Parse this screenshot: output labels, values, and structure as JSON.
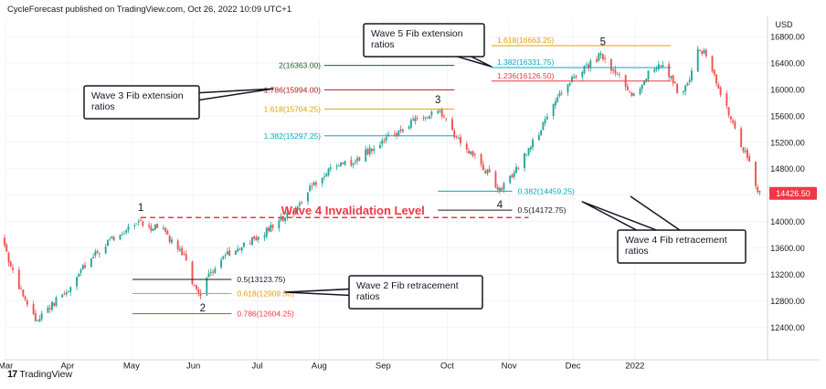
{
  "header": {
    "publisher_line": "CycleForecast published on TradingView.com, Oct 26, 2022 10:09 UTC+1"
  },
  "footer": {
    "logo": "17",
    "brand": "TradingView"
  },
  "chart_data": {
    "type": "candlestick",
    "currency_label": "USD",
    "x_tick_labels": [
      "Mar",
      "Apr",
      "May",
      "Jun",
      "Jul",
      "Aug",
      "Sep",
      "Oct",
      "Nov",
      "Dec",
      "2022"
    ],
    "y_tick_labels": [
      12400,
      12800,
      13200,
      13600,
      14000,
      14400,
      14800,
      15200,
      15600,
      16000,
      16400,
      16800
    ],
    "ylim": [
      12100,
      17050
    ],
    "last_price": {
      "label": "14426.50",
      "value": 14426.5
    },
    "price_path": [
      [
        0,
        13750
      ],
      [
        4,
        13300
      ],
      [
        10,
        12850
      ],
      [
        16,
        12500
      ],
      [
        24,
        12750
      ],
      [
        32,
        12950
      ],
      [
        40,
        13350
      ],
      [
        50,
        13650
      ],
      [
        58,
        13850
      ],
      [
        66,
        14000
      ],
      [
        70,
        13900
      ],
      [
        76,
        13950
      ],
      [
        82,
        13700
      ],
      [
        88,
        13500
      ],
      [
        92,
        13050
      ],
      [
        96,
        12920
      ],
      [
        100,
        13200
      ],
      [
        106,
        13450
      ],
      [
        112,
        13550
      ],
      [
        118,
        13650
      ],
      [
        126,
        13800
      ],
      [
        134,
        14000
      ],
      [
        142,
        14200
      ],
      [
        150,
        14550
      ],
      [
        156,
        14700
      ],
      [
        164,
        14900
      ],
      [
        170,
        14850
      ],
      [
        176,
        15050
      ],
      [
        182,
        15150
      ],
      [
        188,
        15300
      ],
      [
        194,
        15400
      ],
      [
        200,
        15550
      ],
      [
        206,
        15600
      ],
      [
        212,
        15650
      ],
      [
        218,
        15350
      ],
      [
        224,
        15150
      ],
      [
        230,
        14950
      ],
      [
        236,
        14700
      ],
      [
        240,
        14480
      ],
      [
        244,
        14550
      ],
      [
        250,
        14850
      ],
      [
        256,
        15150
      ],
      [
        262,
        15450
      ],
      [
        268,
        15800
      ],
      [
        274,
        16100
      ],
      [
        280,
        16300
      ],
      [
        286,
        16400
      ],
      [
        290,
        16520
      ],
      [
        294,
        16300
      ],
      [
        300,
        16150
      ],
      [
        306,
        15900
      ],
      [
        312,
        16200
      ],
      [
        318,
        16400
      ],
      [
        324,
        16200
      ],
      [
        328,
        15900
      ],
      [
        332,
        16050
      ],
      [
        336,
        16550
      ],
      [
        340,
        16600
      ],
      [
        344,
        16300
      ],
      [
        348,
        15950
      ],
      [
        352,
        15650
      ],
      [
        356,
        15300
      ],
      [
        362,
        14900
      ],
      [
        366,
        14430
      ]
    ],
    "waves": [
      {
        "label": "1",
        "day": 66,
        "price": 14050,
        "position": "above"
      },
      {
        "label": "2",
        "day": 96,
        "price": 12860,
        "position": "below"
      },
      {
        "label": "3",
        "day": 210,
        "price": 15680,
        "position": "above"
      },
      {
        "label": "4",
        "day": 240,
        "price": 14420,
        "position": "below"
      },
      {
        "label": "5",
        "day": 290,
        "price": 16560,
        "position": "above"
      }
    ],
    "invalidation": {
      "label": "Wave 4 Invalidation Level",
      "price": 14060,
      "color": "#f23645",
      "day_start": 66,
      "day_end": 254
    },
    "fib_levels": [
      {
        "label": "2(16363.00)",
        "price": 16363.0,
        "color": "#1b5e20",
        "day_start": 155,
        "day_end": 218,
        "label_side": "left"
      },
      {
        "label": "1.786(15994.00)",
        "price": 15994.0,
        "color": "#b71c1c",
        "day_start": 155,
        "day_end": 218,
        "label_side": "left"
      },
      {
        "label": "1.618(15704.25)",
        "price": 15704.25,
        "color": "#e6a100",
        "day_start": 155,
        "day_end": 218,
        "label_side": "left"
      },
      {
        "label": "1.382(15297.25)",
        "price": 15297.25,
        "color": "#00acc1",
        "day_start": 155,
        "day_end": 218,
        "label_side": "left"
      },
      {
        "label": "1.618(16663.25)",
        "price": 16663.25,
        "color": "#e6a100",
        "day_start": 236,
        "day_end": 323,
        "label_side": "inside"
      },
      {
        "label": "1.382(16331.75)",
        "price": 16331.75,
        "color": "#00acc1",
        "day_start": 236,
        "day_end": 323,
        "label_side": "inside"
      },
      {
        "label": "1.236(16126.50)",
        "price": 16126.5,
        "color": "#f23645",
        "day_start": 236,
        "day_end": 323,
        "label_side": "inside"
      },
      {
        "label": "0.382(14459.25)",
        "price": 14459.25,
        "color": "#00acc1",
        "day_start": 210,
        "day_end": 246,
        "label_side": "right"
      },
      {
        "label": "0.5(14172.75)",
        "price": 14172.75,
        "color": "#131722",
        "day_start": 210,
        "day_end": 246,
        "label_side": "right"
      },
      {
        "label": "0.5(13123.75)",
        "price": 13123.75,
        "color": "#131722",
        "day_start": 62,
        "day_end": 110,
        "label_side": "right"
      },
      {
        "label": "0.618(12909.50)",
        "price": 12909.5,
        "color": "#e6a100",
        "day_start": 62,
        "day_end": 110,
        "label_side": "right"
      },
      {
        "label": "0.786(12604.25)",
        "price": 12604.25,
        "color": "#f23645",
        "day_start": 62,
        "day_end": 110,
        "label_side": "right"
      }
    ],
    "callouts": [
      {
        "lines": [
          "Wave 5 Fib extension",
          "ratios"
        ],
        "pointer_day": 236,
        "pointer_price": 16345
      },
      {
        "lines": [
          "Wave 3 Fib extension",
          "ratios"
        ],
        "pointer_day": 130,
        "pointer_price": 16010
      },
      {
        "lines": [
          "Wave 4 Fib retracement",
          "ratios"
        ],
        "pointer_day": 280,
        "pointer_price": 14300
      },
      {
        "lines": [
          "Wave 2 Fib retracement",
          "ratios"
        ],
        "pointer_day": 136,
        "pointer_price": 12930
      }
    ],
    "colors": {
      "up": "#26a69a",
      "down": "#ef5350",
      "last_price_badge": "#f23645"
    }
  }
}
